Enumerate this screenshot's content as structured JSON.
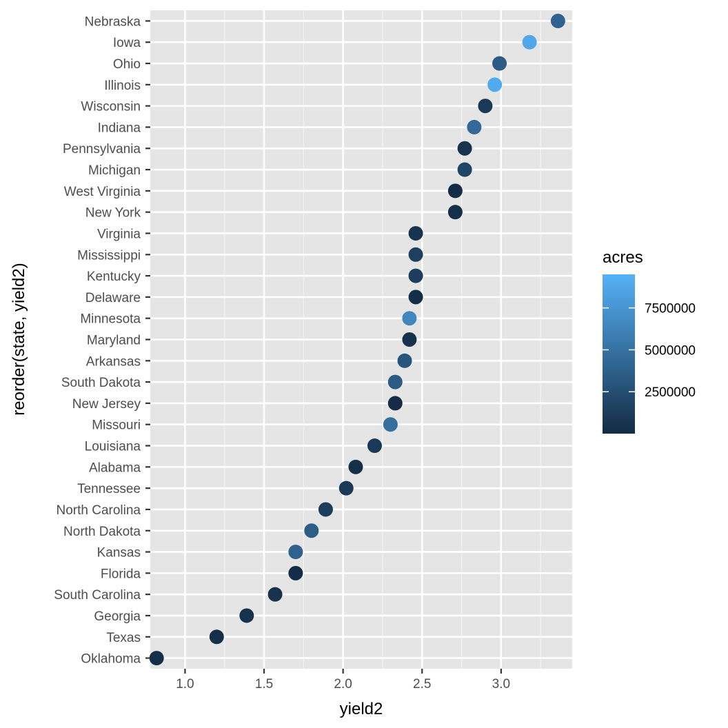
{
  "chart_data": {
    "type": "scatter",
    "xlabel": "yield2",
    "ylabel": "reorder(state, yield2)",
    "xlim": [
      0.78,
      3.45
    ],
    "x_ticks": [
      1.0,
      1.5,
      2.0,
      2.5,
      3.0
    ],
    "x_tick_labels": [
      "1.0",
      "1.5",
      "2.0",
      "2.5",
      "3.0"
    ],
    "grid": true,
    "legend": {
      "title": "acres",
      "placement": "right",
      "type": "colorbar",
      "range": [
        0,
        9500000
      ],
      "ticks": [
        2500000,
        5000000,
        7500000
      ],
      "tick_labels": [
        "2500000",
        "5000000",
        "7500000"
      ],
      "color_low": "#132B43",
      "color_high": "#56B1F7"
    },
    "points": [
      {
        "state": "Nebraska",
        "yield2": 3.36,
        "acres": 4000000
      },
      {
        "state": "Iowa",
        "yield2": 3.18,
        "acres": 8800000
      },
      {
        "state": "Ohio",
        "yield2": 2.99,
        "acres": 3500000
      },
      {
        "state": "Illinois",
        "yield2": 2.96,
        "acres": 9000000
      },
      {
        "state": "Wisconsin",
        "yield2": 2.9,
        "acres": 1000000
      },
      {
        "state": "Indiana",
        "yield2": 2.83,
        "acres": 4400000
      },
      {
        "state": "Pennsylvania",
        "yield2": 2.77,
        "acres": 500000
      },
      {
        "state": "Michigan",
        "yield2": 2.77,
        "acres": 1800000
      },
      {
        "state": "West Virginia",
        "yield2": 2.71,
        "acres": 100000
      },
      {
        "state": "New York",
        "yield2": 2.71,
        "acres": 300000
      },
      {
        "state": "Virginia",
        "yield2": 2.46,
        "acres": 600000
      },
      {
        "state": "Mississippi",
        "yield2": 2.46,
        "acres": 1500000
      },
      {
        "state": "Kentucky",
        "yield2": 2.46,
        "acres": 1300000
      },
      {
        "state": "Delaware",
        "yield2": 2.46,
        "acres": 200000
      },
      {
        "state": "Minnesota",
        "yield2": 2.42,
        "acres": 6500000
      },
      {
        "state": "Maryland",
        "yield2": 2.42,
        "acres": 400000
      },
      {
        "state": "Arkansas",
        "yield2": 2.39,
        "acres": 3000000
      },
      {
        "state": "South Dakota",
        "yield2": 2.33,
        "acres": 3400000
      },
      {
        "state": "New Jersey",
        "yield2": 2.33,
        "acres": 100000
      },
      {
        "state": "Missouri",
        "yield2": 2.3,
        "acres": 4800000
      },
      {
        "state": "Louisiana",
        "yield2": 2.2,
        "acres": 1000000
      },
      {
        "state": "Alabama",
        "yield2": 2.08,
        "acres": 300000
      },
      {
        "state": "Tennessee",
        "yield2": 2.02,
        "acres": 1000000
      },
      {
        "state": "North Carolina",
        "yield2": 1.89,
        "acres": 1200000
      },
      {
        "state": "North Dakota",
        "yield2": 1.8,
        "acres": 3600000
      },
      {
        "state": "Kansas",
        "yield2": 1.7,
        "acres": 3800000
      },
      {
        "state": "Florida",
        "yield2": 1.7,
        "acres": 100000
      },
      {
        "state": "South Carolina",
        "yield2": 1.57,
        "acres": 500000
      },
      {
        "state": "Georgia",
        "yield2": 1.39,
        "acres": 500000
      },
      {
        "state": "Texas",
        "yield2": 1.2,
        "acres": 300000
      },
      {
        "state": "Oklahoma",
        "yield2": 0.82,
        "acres": 300000
      }
    ]
  }
}
